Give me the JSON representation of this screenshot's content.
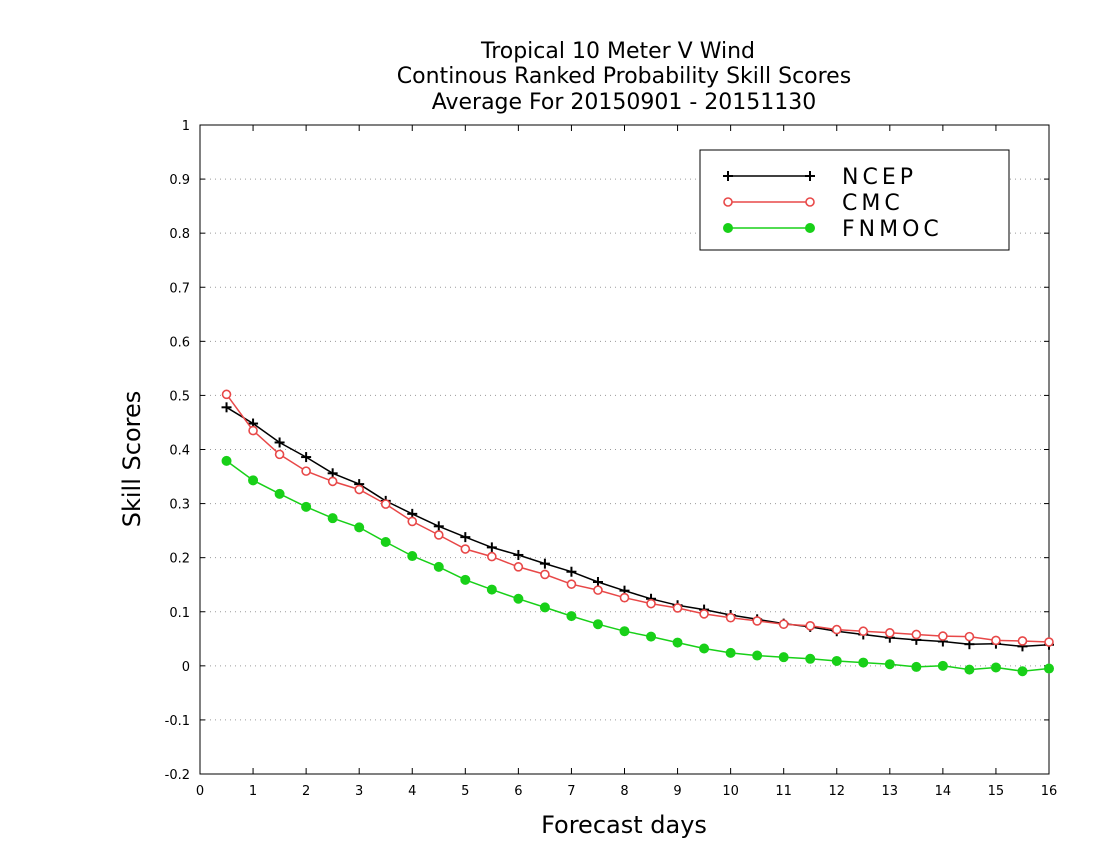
{
  "chart_data": {
    "type": "line",
    "title": [
      "Tropical 10 Meter V Wind",
      "Continous Ranked Probability Skill Scores",
      "Average For 20150901 - 20151130"
    ],
    "xlabel": "Forecast days",
    "ylabel": "Skill Scores",
    "xlim": [
      0,
      16
    ],
    "ylim": [
      -0.2,
      1
    ],
    "xticks": [
      "0",
      "1",
      "2",
      "3",
      "4",
      "5",
      "6",
      "7",
      "8",
      "9",
      "10",
      "11",
      "12",
      "13",
      "14",
      "15",
      "16"
    ],
    "yticks": [
      "-0.2",
      "-0.1",
      "0",
      "0.1",
      "0.2",
      "0.3",
      "0.4",
      "0.5",
      "0.6",
      "0.7",
      "0.8",
      "0.9",
      "1"
    ],
    "grid": true,
    "legend_position": "top-right",
    "x": [
      0.5,
      1,
      1.5,
      2,
      2.5,
      3,
      3.5,
      4,
      4.5,
      5,
      5.5,
      6,
      6.5,
      7,
      7.5,
      8,
      8.5,
      9,
      9.5,
      10,
      10.5,
      11,
      11.5,
      12,
      12.5,
      13,
      13.5,
      14,
      14.5,
      15,
      15.5,
      16
    ],
    "series": [
      {
        "name": "NCEP",
        "color": "#000000",
        "marker": "plus",
        "values": [
          0.478,
          0.448,
          0.413,
          0.386,
          0.356,
          0.336,
          0.305,
          0.281,
          0.258,
          0.238,
          0.219,
          0.205,
          0.189,
          0.174,
          0.155,
          0.139,
          0.124,
          0.112,
          0.104,
          0.094,
          0.086,
          0.078,
          0.072,
          0.064,
          0.058,
          0.052,
          0.048,
          0.045,
          0.04,
          0.041,
          0.036,
          0.039
        ]
      },
      {
        "name": "CMC",
        "color": "#e84848",
        "marker": "open-circle",
        "values": [
          0.502,
          0.435,
          0.391,
          0.36,
          0.341,
          0.326,
          0.299,
          0.267,
          0.242,
          0.216,
          0.202,
          0.183,
          0.169,
          0.151,
          0.14,
          0.126,
          0.115,
          0.107,
          0.096,
          0.089,
          0.083,
          0.077,
          0.074,
          0.067,
          0.064,
          0.061,
          0.058,
          0.055,
          0.054,
          0.047,
          0.046,
          0.044
        ]
      },
      {
        "name": "FNMOC",
        "color": "#18d018",
        "marker": "filled-circle",
        "values": [
          0.379,
          0.343,
          0.318,
          0.294,
          0.273,
          0.256,
          0.229,
          0.203,
          0.183,
          0.159,
          0.141,
          0.124,
          0.108,
          0.092,
          0.077,
          0.064,
          0.054,
          0.043,
          0.032,
          0.024,
          0.019,
          0.016,
          0.013,
          0.009,
          0.006,
          0.003,
          -0.002,
          0.0,
          -0.007,
          -0.003,
          -0.01,
          -0.005
        ]
      }
    ]
  }
}
